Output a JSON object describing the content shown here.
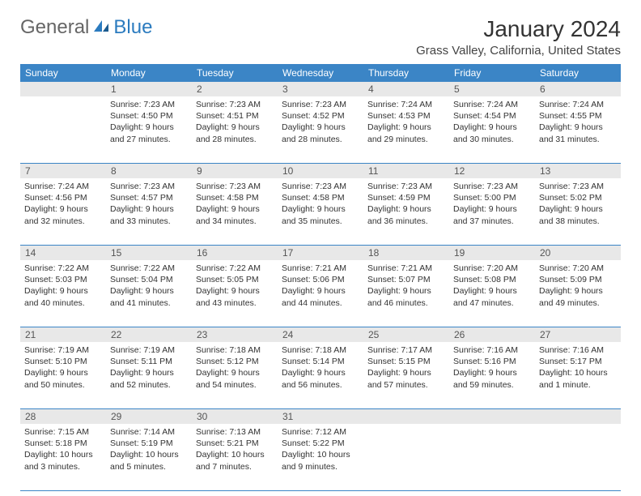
{
  "logo": {
    "text1": "General",
    "text2": "Blue"
  },
  "title": "January 2024",
  "location": "Grass Valley, California, United States",
  "colors": {
    "header_bg": "#3b85c6",
    "header_text": "#ffffff",
    "daynum_bg": "#e8e8e8",
    "border": "#3b85c6",
    "text": "#333333"
  },
  "weekdays": [
    "Sunday",
    "Monday",
    "Tuesday",
    "Wednesday",
    "Thursday",
    "Friday",
    "Saturday"
  ],
  "weeks": [
    {
      "nums": [
        "",
        "1",
        "2",
        "3",
        "4",
        "5",
        "6"
      ],
      "days": [
        null,
        {
          "sunrise": "Sunrise: 7:23 AM",
          "sunset": "Sunset: 4:50 PM",
          "day1": "Daylight: 9 hours",
          "day2": "and 27 minutes."
        },
        {
          "sunrise": "Sunrise: 7:23 AM",
          "sunset": "Sunset: 4:51 PM",
          "day1": "Daylight: 9 hours",
          "day2": "and 28 minutes."
        },
        {
          "sunrise": "Sunrise: 7:23 AM",
          "sunset": "Sunset: 4:52 PM",
          "day1": "Daylight: 9 hours",
          "day2": "and 28 minutes."
        },
        {
          "sunrise": "Sunrise: 7:24 AM",
          "sunset": "Sunset: 4:53 PM",
          "day1": "Daylight: 9 hours",
          "day2": "and 29 minutes."
        },
        {
          "sunrise": "Sunrise: 7:24 AM",
          "sunset": "Sunset: 4:54 PM",
          "day1": "Daylight: 9 hours",
          "day2": "and 30 minutes."
        },
        {
          "sunrise": "Sunrise: 7:24 AM",
          "sunset": "Sunset: 4:55 PM",
          "day1": "Daylight: 9 hours",
          "day2": "and 31 minutes."
        }
      ]
    },
    {
      "nums": [
        "7",
        "8",
        "9",
        "10",
        "11",
        "12",
        "13"
      ],
      "days": [
        {
          "sunrise": "Sunrise: 7:24 AM",
          "sunset": "Sunset: 4:56 PM",
          "day1": "Daylight: 9 hours",
          "day2": "and 32 minutes."
        },
        {
          "sunrise": "Sunrise: 7:23 AM",
          "sunset": "Sunset: 4:57 PM",
          "day1": "Daylight: 9 hours",
          "day2": "and 33 minutes."
        },
        {
          "sunrise": "Sunrise: 7:23 AM",
          "sunset": "Sunset: 4:58 PM",
          "day1": "Daylight: 9 hours",
          "day2": "and 34 minutes."
        },
        {
          "sunrise": "Sunrise: 7:23 AM",
          "sunset": "Sunset: 4:58 PM",
          "day1": "Daylight: 9 hours",
          "day2": "and 35 minutes."
        },
        {
          "sunrise": "Sunrise: 7:23 AM",
          "sunset": "Sunset: 4:59 PM",
          "day1": "Daylight: 9 hours",
          "day2": "and 36 minutes."
        },
        {
          "sunrise": "Sunrise: 7:23 AM",
          "sunset": "Sunset: 5:00 PM",
          "day1": "Daylight: 9 hours",
          "day2": "and 37 minutes."
        },
        {
          "sunrise": "Sunrise: 7:23 AM",
          "sunset": "Sunset: 5:02 PM",
          "day1": "Daylight: 9 hours",
          "day2": "and 38 minutes."
        }
      ]
    },
    {
      "nums": [
        "14",
        "15",
        "16",
        "17",
        "18",
        "19",
        "20"
      ],
      "days": [
        {
          "sunrise": "Sunrise: 7:22 AM",
          "sunset": "Sunset: 5:03 PM",
          "day1": "Daylight: 9 hours",
          "day2": "and 40 minutes."
        },
        {
          "sunrise": "Sunrise: 7:22 AM",
          "sunset": "Sunset: 5:04 PM",
          "day1": "Daylight: 9 hours",
          "day2": "and 41 minutes."
        },
        {
          "sunrise": "Sunrise: 7:22 AM",
          "sunset": "Sunset: 5:05 PM",
          "day1": "Daylight: 9 hours",
          "day2": "and 43 minutes."
        },
        {
          "sunrise": "Sunrise: 7:21 AM",
          "sunset": "Sunset: 5:06 PM",
          "day1": "Daylight: 9 hours",
          "day2": "and 44 minutes."
        },
        {
          "sunrise": "Sunrise: 7:21 AM",
          "sunset": "Sunset: 5:07 PM",
          "day1": "Daylight: 9 hours",
          "day2": "and 46 minutes."
        },
        {
          "sunrise": "Sunrise: 7:20 AM",
          "sunset": "Sunset: 5:08 PM",
          "day1": "Daylight: 9 hours",
          "day2": "and 47 minutes."
        },
        {
          "sunrise": "Sunrise: 7:20 AM",
          "sunset": "Sunset: 5:09 PM",
          "day1": "Daylight: 9 hours",
          "day2": "and 49 minutes."
        }
      ]
    },
    {
      "nums": [
        "21",
        "22",
        "23",
        "24",
        "25",
        "26",
        "27"
      ],
      "days": [
        {
          "sunrise": "Sunrise: 7:19 AM",
          "sunset": "Sunset: 5:10 PM",
          "day1": "Daylight: 9 hours",
          "day2": "and 50 minutes."
        },
        {
          "sunrise": "Sunrise: 7:19 AM",
          "sunset": "Sunset: 5:11 PM",
          "day1": "Daylight: 9 hours",
          "day2": "and 52 minutes."
        },
        {
          "sunrise": "Sunrise: 7:18 AM",
          "sunset": "Sunset: 5:12 PM",
          "day1": "Daylight: 9 hours",
          "day2": "and 54 minutes."
        },
        {
          "sunrise": "Sunrise: 7:18 AM",
          "sunset": "Sunset: 5:14 PM",
          "day1": "Daylight: 9 hours",
          "day2": "and 56 minutes."
        },
        {
          "sunrise": "Sunrise: 7:17 AM",
          "sunset": "Sunset: 5:15 PM",
          "day1": "Daylight: 9 hours",
          "day2": "and 57 minutes."
        },
        {
          "sunrise": "Sunrise: 7:16 AM",
          "sunset": "Sunset: 5:16 PM",
          "day1": "Daylight: 9 hours",
          "day2": "and 59 minutes."
        },
        {
          "sunrise": "Sunrise: 7:16 AM",
          "sunset": "Sunset: 5:17 PM",
          "day1": "Daylight: 10 hours",
          "day2": "and 1 minute."
        }
      ]
    },
    {
      "nums": [
        "28",
        "29",
        "30",
        "31",
        "",
        "",
        ""
      ],
      "days": [
        {
          "sunrise": "Sunrise: 7:15 AM",
          "sunset": "Sunset: 5:18 PM",
          "day1": "Daylight: 10 hours",
          "day2": "and 3 minutes."
        },
        {
          "sunrise": "Sunrise: 7:14 AM",
          "sunset": "Sunset: 5:19 PM",
          "day1": "Daylight: 10 hours",
          "day2": "and 5 minutes."
        },
        {
          "sunrise": "Sunrise: 7:13 AM",
          "sunset": "Sunset: 5:21 PM",
          "day1": "Daylight: 10 hours",
          "day2": "and 7 minutes."
        },
        {
          "sunrise": "Sunrise: 7:12 AM",
          "sunset": "Sunset: 5:22 PM",
          "day1": "Daylight: 10 hours",
          "day2": "and 9 minutes."
        },
        null,
        null,
        null
      ]
    }
  ]
}
